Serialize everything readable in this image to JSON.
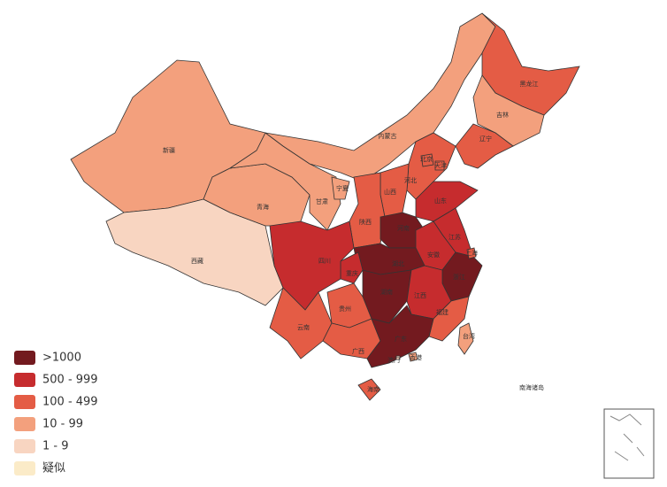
{
  "legend": [
    {
      "label": ">1000",
      "color": "#731a1f"
    },
    {
      "label": "500 - 999",
      "color": "#c62c2e"
    },
    {
      "label": "100 - 499",
      "color": "#e45c45"
    },
    {
      "label": "10 - 99",
      "color": "#f3a07d"
    },
    {
      "label": "1 - 9",
      "color": "#f8d5c1"
    },
    {
      "label": "疑似",
      "color": "#fbebc8"
    }
  ],
  "regions": [
    {
      "name": "新疆",
      "color": "#f3a07d"
    },
    {
      "name": "西藏",
      "color": "#f8d5c1"
    },
    {
      "name": "青海",
      "color": "#f3a07d"
    },
    {
      "name": "甘肃",
      "color": "#f3a07d"
    },
    {
      "name": "内蒙古",
      "color": "#f3a07d"
    },
    {
      "name": "黑龙江",
      "color": "#e45c45"
    },
    {
      "name": "吉林",
      "color": "#f3a07d"
    },
    {
      "name": "辽宁",
      "color": "#e45c45"
    },
    {
      "name": "河北",
      "color": "#e45c45"
    },
    {
      "name": "山西",
      "color": "#e45c45"
    },
    {
      "name": "陕西",
      "color": "#e45c45"
    },
    {
      "name": "宁夏",
      "color": "#f3a07d"
    },
    {
      "name": "山东",
      "color": "#c62c2e"
    },
    {
      "name": "河南",
      "color": "#731a1f"
    },
    {
      "name": "江苏",
      "color": "#c62c2e"
    },
    {
      "name": "安徽",
      "color": "#c62c2e"
    },
    {
      "name": "湖北",
      "color": "#731a1f"
    },
    {
      "name": "浙江",
      "color": "#731a1f"
    },
    {
      "name": "重庆",
      "color": "#c62c2e"
    },
    {
      "name": "四川",
      "color": "#c62c2e"
    },
    {
      "name": "湖南",
      "color": "#731a1f"
    },
    {
      "name": "江西",
      "color": "#c62c2e"
    },
    {
      "name": "福建",
      "color": "#e45c45"
    },
    {
      "name": "贵州",
      "color": "#e45c45"
    },
    {
      "name": "云南",
      "color": "#e45c45"
    },
    {
      "name": "广西",
      "color": "#e45c45"
    },
    {
      "name": "广东",
      "color": "#731a1f"
    },
    {
      "name": "海南",
      "color": "#e45c45"
    },
    {
      "name": "台湾",
      "color": "#f3a07d"
    },
    {
      "name": "北京",
      "color": "#e45c45"
    },
    {
      "name": "天津",
      "color": "#e45c45"
    },
    {
      "name": "上海",
      "color": "#e45c45"
    },
    {
      "name": "香港",
      "color": "#f3a07d"
    },
    {
      "name": "澳门",
      "color": "#f8d5c1"
    }
  ],
  "inset_label": "南海诸岛"
}
